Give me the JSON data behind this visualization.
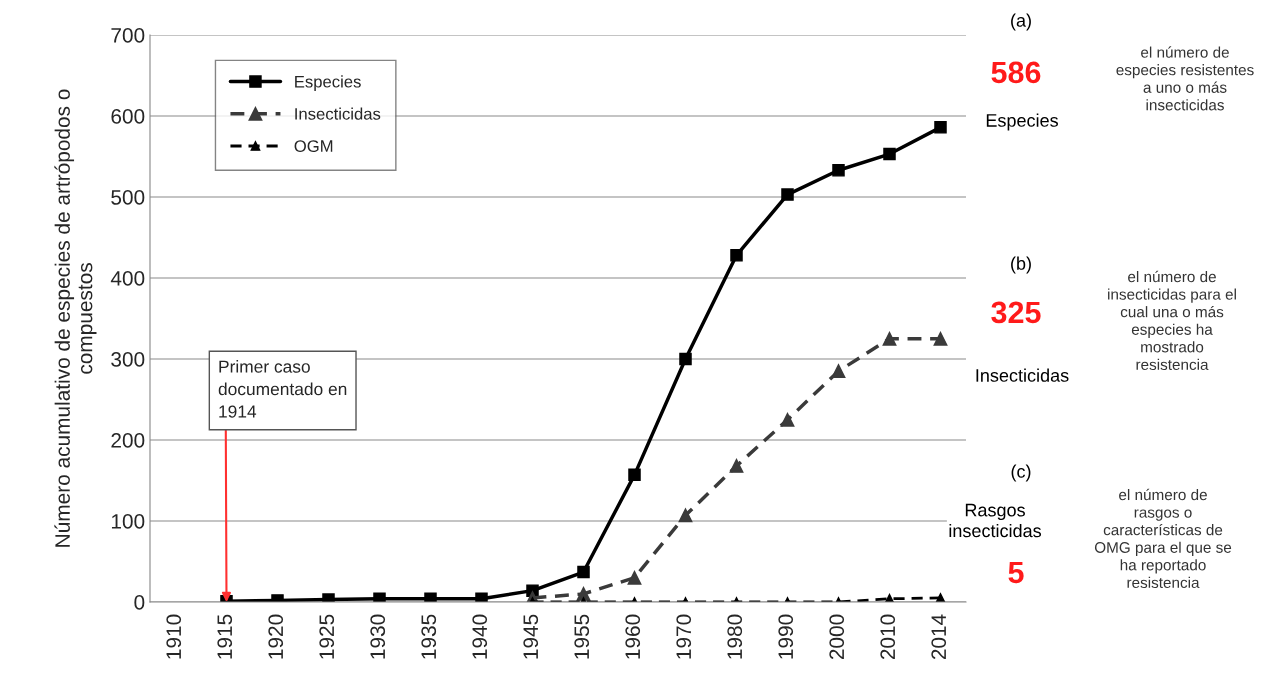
{
  "chart_data": {
    "type": "line",
    "ylabel": "Número acumulativo de especies de artrópodos o\ncompuestos",
    "categories": [
      "1910",
      "1915",
      "1920",
      "1925",
      "1930",
      "1935",
      "1940",
      "1945",
      "1955",
      "1960",
      "1970",
      "1980",
      "1990",
      "2000",
      "2010",
      "2014"
    ],
    "series": [
      {
        "name": "Especies",
        "color": "#000000",
        "marker": "square",
        "line_style": "solid",
        "values": [
          null,
          1,
          2,
          3,
          4,
          4,
          4,
          14,
          37,
          157,
          300,
          428,
          503,
          533,
          553,
          586
        ]
      },
      {
        "name": "Insecticidas",
        "color": "#3a3a3a",
        "marker": "triangle",
        "line_style": "dashed",
        "values": [
          null,
          null,
          null,
          null,
          null,
          null,
          null,
          5,
          10,
          30,
          107,
          168,
          225,
          285,
          325,
          325
        ]
      },
      {
        "name": "OGM",
        "color": "#000000",
        "marker": "triangle",
        "line_style": "dashed",
        "values": [
          null,
          null,
          null,
          null,
          null,
          null,
          null,
          0,
          0,
          0,
          0,
          0,
          0,
          0,
          4,
          5
        ]
      }
    ],
    "ylim": [
      0,
      700
    ],
    "yticks": [
      0,
      100,
      200,
      300,
      400,
      500,
      600,
      700
    ],
    "grid": "y",
    "legend": "top left",
    "annotations": [
      {
        "text": "Primer caso\ndocumentado en\n1914",
        "x": "1915",
        "y": 0
      },
      "(a)",
      "586",
      "Especies",
      "el número de\nespecies resistentes\na uno o más\ninsecticidas",
      "(b)",
      "325",
      "Insecticidas",
      "el número de\ninsecticidas para el\ncual una o más\nespecies ha\nmostrado\nresistencia",
      "(c)",
      "Rasgos\ninsecticidas",
      "5",
      "el número de\nrasgos o\ncaracterísticas de\nOMG para el que se\nha reportado\nresistencia"
    ]
  }
}
